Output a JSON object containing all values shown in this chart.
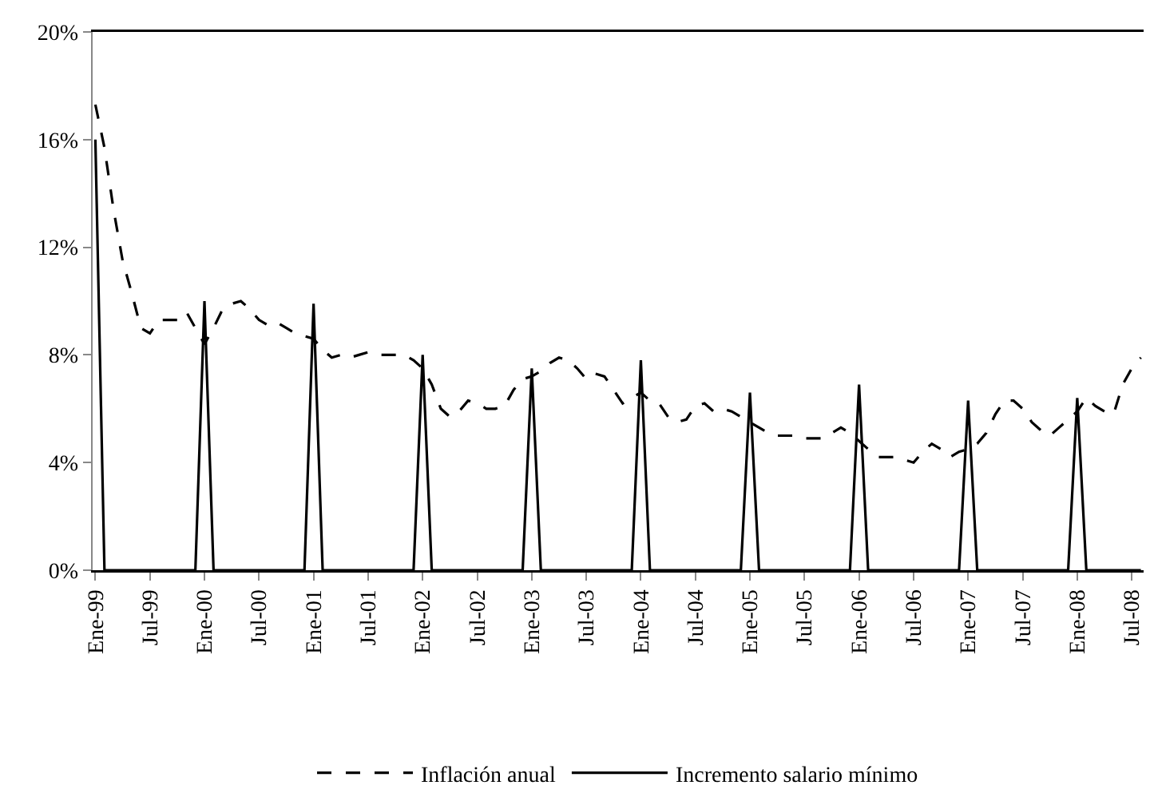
{
  "chart_data": {
    "type": "line",
    "categories": [
      "Ene-99",
      null,
      null,
      null,
      null,
      null,
      "Jul-99",
      null,
      null,
      null,
      null,
      null,
      "Ene-00",
      null,
      null,
      null,
      null,
      null,
      "Jul-00",
      null,
      null,
      null,
      null,
      null,
      "Ene-01",
      null,
      null,
      null,
      null,
      null,
      "Jul-01",
      null,
      null,
      null,
      null,
      null,
      "Ene-02",
      null,
      null,
      null,
      null,
      null,
      "Jul-02",
      null,
      null,
      null,
      null,
      null,
      "Ene-03",
      null,
      null,
      null,
      null,
      null,
      "Jul-03",
      null,
      null,
      null,
      null,
      null,
      "Ene-04",
      null,
      null,
      null,
      null,
      null,
      "Jul-04",
      null,
      null,
      null,
      null,
      null,
      "Ene-05",
      null,
      null,
      null,
      null,
      null,
      "Jul-05",
      null,
      null,
      null,
      null,
      null,
      "Ene-06",
      null,
      null,
      null,
      null,
      null,
      "Jul-06",
      null,
      null,
      null,
      null,
      null,
      "Ene-07",
      null,
      null,
      null,
      null,
      null,
      "Jul-07",
      null,
      null,
      null,
      null,
      null,
      "Ene-08",
      null,
      null,
      null,
      null,
      null,
      "Jul-08",
      null
    ],
    "series": [
      {
        "name": "Inflación anual",
        "color": "#000000",
        "line_style": "dashed",
        "values": [
          17.3,
          15.7,
          13.4,
          11.5,
          10.3,
          9.0,
          8.8,
          9.3,
          9.3,
          9.3,
          9.6,
          9.0,
          8.4,
          9.0,
          9.7,
          9.9,
          10.0,
          9.7,
          9.3,
          9.1,
          9.2,
          9.0,
          8.8,
          8.7,
          8.6,
          8.2,
          7.9,
          8.0,
          7.9,
          8.0,
          8.1,
          8.0,
          8.0,
          8.0,
          8.0,
          7.8,
          7.5,
          6.9,
          6.0,
          5.7,
          5.9,
          6.3,
          6.2,
          6.0,
          6.0,
          6.1,
          6.7,
          7.1,
          7.2,
          7.4,
          7.7,
          7.9,
          7.8,
          7.5,
          7.1,
          7.3,
          7.2,
          6.7,
          6.2,
          6.4,
          6.6,
          6.3,
          6.2,
          5.7,
          5.5,
          5.6,
          6.1,
          6.2,
          5.9,
          6.0,
          5.9,
          5.7,
          5.5,
          5.3,
          5.1,
          5.0,
          5.0,
          5.0,
          4.9,
          4.9,
          4.9,
          5.1,
          5.3,
          5.1,
          4.8,
          4.5,
          4.2,
          4.2,
          4.2,
          4.1,
          4.0,
          4.4,
          4.7,
          4.5,
          4.2,
          4.4,
          4.5,
          4.7,
          5.1,
          5.8,
          6.3,
          6.3,
          6.0,
          5.5,
          5.2,
          5.0,
          5.3,
          5.6,
          5.9,
          6.4,
          6.1,
          5.9,
          5.8,
          6.9,
          7.5,
          7.9
        ]
      },
      {
        "name": "Incremento salario mínimo",
        "color": "#000000",
        "line_style": "solid",
        "values": [
          16,
          0,
          0,
          0,
          0,
          0,
          0,
          0,
          0,
          0,
          0,
          0,
          10.0,
          0,
          0,
          0,
          0,
          0,
          0,
          0,
          0,
          0,
          0,
          0,
          9.9,
          0,
          0,
          0,
          0,
          0,
          0,
          0,
          0,
          0,
          0,
          0,
          8.0,
          0,
          0,
          0,
          0,
          0,
          0,
          0,
          0,
          0,
          0,
          0,
          7.5,
          0,
          0,
          0,
          0,
          0,
          0,
          0,
          0,
          0,
          0,
          0,
          7.8,
          0,
          0,
          0,
          0,
          0,
          0,
          0,
          0,
          0,
          0,
          0,
          6.6,
          0,
          0,
          0,
          0,
          0,
          0,
          0,
          0,
          0,
          0,
          0,
          6.9,
          0,
          0,
          0,
          0,
          0,
          0,
          0,
          0,
          0,
          0,
          0,
          6.3,
          0,
          0,
          0,
          0,
          0,
          0,
          0,
          0,
          0,
          0,
          0,
          6.4,
          0,
          0,
          0,
          0,
          0,
          0,
          0
        ]
      }
    ],
    "ylim": [
      0,
      20
    ],
    "yticks": [
      {
        "value": 0,
        "label": "0%"
      },
      {
        "value": 4,
        "label": "4%"
      },
      {
        "value": 8,
        "label": "8%"
      },
      {
        "value": 12,
        "label": "12%"
      },
      {
        "value": 16,
        "label": "16%"
      },
      {
        "value": 20,
        "label": "20%"
      }
    ],
    "legend": "bottom"
  }
}
